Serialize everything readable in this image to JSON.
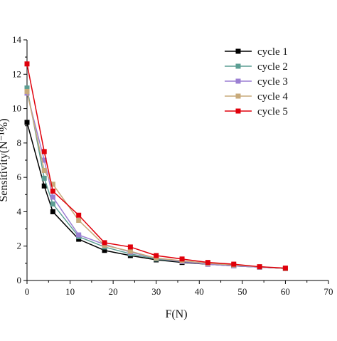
{
  "chart_data": {
    "type": "line",
    "xlabel": "F(N)",
    "ylabel": "Sensitivity(N⁻¹%)",
    "xlim": [
      0,
      70
    ],
    "ylim": [
      0,
      14
    ],
    "xticks": [
      0,
      10,
      20,
      30,
      40,
      50,
      60,
      70
    ],
    "yticks": [
      0,
      2,
      4,
      6,
      8,
      10,
      12,
      14
    ],
    "grid": false,
    "legend_position": "top-right",
    "x": [
      0,
      4,
      6,
      12,
      18,
      24,
      30,
      36,
      42,
      48,
      54,
      60
    ],
    "series": [
      {
        "name": "cycle 1",
        "color": "#000000",
        "values": [
          9.2,
          5.5,
          4.0,
          2.4,
          1.75,
          1.45,
          1.2,
          1.05,
          0.95,
          0.85,
          0.78,
          0.7
        ]
      },
      {
        "name": "cycle 2",
        "color": "#5b9e93",
        "values": [
          11.2,
          5.95,
          4.45,
          2.55,
          1.95,
          1.55,
          1.25,
          1.1,
          0.95,
          0.85,
          0.78,
          0.7
        ]
      },
      {
        "name": "cycle 3",
        "color": "#9b7fd3",
        "values": [
          10.9,
          7.0,
          4.85,
          2.65,
          2.1,
          1.65,
          1.3,
          1.1,
          0.95,
          0.85,
          0.78,
          0.7
        ]
      },
      {
        "name": "cycle 4",
        "color": "#c8aa7a",
        "values": [
          11.0,
          6.4,
          5.6,
          3.5,
          2.05,
          1.7,
          1.3,
          1.15,
          1.0,
          0.9,
          0.8,
          0.7
        ]
      },
      {
        "name": "cycle 5",
        "color": "#e0000b",
        "values": [
          12.6,
          7.5,
          5.2,
          3.8,
          2.2,
          1.95,
          1.45,
          1.25,
          1.05,
          0.95,
          0.8,
          0.72
        ]
      }
    ]
  }
}
